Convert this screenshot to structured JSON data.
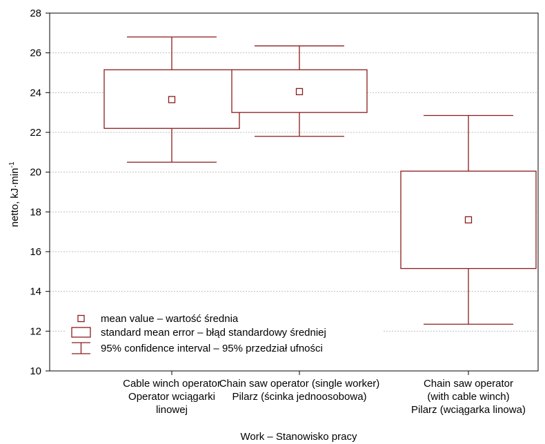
{
  "chart_data": {
    "type": "box",
    "categories": [
      [
        "Cable winch operator",
        "Operator wciągarki",
        "linowej"
      ],
      [
        "Chain saw operator (single worker)",
        "Pilarz (ścinka jednoosobowa)"
      ],
      [
        "Chain saw operator",
        "(with cable winch)",
        "Pilarz (wciągarka linowa)"
      ]
    ],
    "series": [
      {
        "mean": 23.65,
        "se_low": 22.2,
        "se_high": 25.15,
        "ci_low": 20.5,
        "ci_high": 26.8
      },
      {
        "mean": 24.05,
        "se_low": 23.0,
        "se_high": 25.15,
        "ci_low": 21.8,
        "ci_high": 26.35
      },
      {
        "mean": 17.6,
        "se_low": 15.15,
        "se_high": 20.05,
        "ci_low": 12.35,
        "ci_high": 22.85
      }
    ],
    "xlabel": "Work – Stanowisko pracy",
    "ylabel": "netto, kJ·min",
    "ylabel_sup": "-1",
    "ylim": [
      10,
      28
    ],
    "yticks": [
      10,
      12,
      14,
      16,
      18,
      20,
      22,
      24,
      26,
      28
    ],
    "grid": true,
    "legend": {
      "position": "bottom-left",
      "items": [
        "mean value – wartość średnia",
        "standard mean error – błąd standardowy średniej",
        "95% confidence interval – 95% przedział ufności"
      ]
    },
    "colors": {
      "box": "#8b1a1a",
      "grid": "#bdbdbd",
      "axis": "#000000"
    }
  }
}
